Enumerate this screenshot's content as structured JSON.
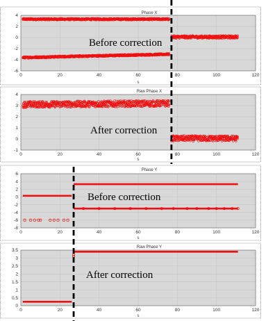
{
  "chart_data": [
    {
      "type": "scatter",
      "title": "Phase X",
      "xlabel": "s",
      "ylabel": "",
      "xlim": [
        0,
        120
      ],
      "ylim": [
        -6,
        4
      ],
      "xticks": [
        "0",
        "20",
        "40",
        "60",
        "80",
        "100",
        "120"
      ],
      "yticks": [
        "4",
        "2",
        "0",
        "-2",
        "-4",
        "-6"
      ],
      "annotation": "Before correction",
      "grid": true,
      "dashed_line_x": 77,
      "series": [
        {
          "segments": [
            {
              "x": [
                1,
                76
              ],
              "y": [
                3.3,
                3.3
              ],
              "spread": 0.15
            },
            {
              "x": [
                1,
                76
              ],
              "y": [
                -3.6,
                -3.0
              ],
              "spread": 0.15
            },
            {
              "x": [
                77,
                111
              ],
              "y": [
                0.1,
                0.1
              ],
              "spread": 0.25
            }
          ]
        }
      ],
      "color": "#ee1111"
    },
    {
      "type": "scatter",
      "title": "Raw Phase X",
      "xlabel": "s",
      "ylabel": "",
      "xlim": [
        0,
        120
      ],
      "ylim": [
        -1,
        4
      ],
      "xticks": [
        "0",
        "20",
        "40",
        "60",
        "80",
        "100",
        "120"
      ],
      "yticks": [
        "4",
        "3",
        "2",
        "1",
        "0",
        "-1"
      ],
      "annotation": "After correction",
      "grid": true,
      "dashed_line_x": 77,
      "series": [
        {
          "segments": [
            {
              "x": [
                1,
                76
              ],
              "y": [
                3.1,
                3.2
              ],
              "spread": 0.28
            },
            {
              "x": [
                77,
                111
              ],
              "y": [
                0.05,
                0.05
              ],
              "spread": 0.25
            }
          ]
        }
      ],
      "color": "#ee1111"
    },
    {
      "type": "scatter",
      "title": "Phase Y",
      "xlabel": "s",
      "ylabel": "",
      "xlim": [
        0,
        120
      ],
      "ylim": [
        -8,
        6
      ],
      "xticks": [
        "0",
        "20",
        "40",
        "60",
        "80",
        "100",
        "120"
      ],
      "yticks": [
        "6",
        "4",
        "2",
        "0",
        "-2",
        "-4",
        "-6",
        "-8"
      ],
      "annotation": "Before correction",
      "grid": true,
      "dashed_line_x": 27,
      "series": [
        {
          "segments": [
            {
              "x": [
                1,
                26
              ],
              "y": [
                0.3,
                0.3
              ],
              "spread": 0
            },
            {
              "x": [
                27,
                111
              ],
              "y": [
                3.3,
                3.3
              ],
              "spread": 0
            },
            {
              "x": [
                27,
                111
              ],
              "y": [
                -3.0,
                -3.0
              ],
              "spread": 0
            }
          ],
          "points": [
            [
              2,
              -6
            ],
            [
              5,
              -6
            ],
            [
              7,
              -6
            ],
            [
              9,
              -6
            ],
            [
              10,
              -6
            ],
            [
              15,
              -6
            ],
            [
              17,
              -6
            ],
            [
              19,
              -6
            ],
            [
              22,
              -6
            ],
            [
              24,
              -6
            ],
            [
              32,
              -3
            ],
            [
              40,
              -3
            ],
            [
              48,
              -3
            ],
            [
              56,
              -3
            ],
            [
              64,
              -3
            ],
            [
              72,
              -3
            ],
            [
              78,
              -3
            ],
            [
              85,
              -3
            ],
            [
              90,
              -3
            ],
            [
              96,
              -3
            ],
            [
              100,
              -3
            ],
            [
              104,
              -3
            ],
            [
              108,
              -3
            ],
            [
              111,
              -3
            ]
          ]
        }
      ],
      "color": "#ee1111"
    },
    {
      "type": "scatter",
      "title": "Raw Phase Y",
      "xlabel": "s",
      "ylabel": "",
      "xlim": [
        0,
        120
      ],
      "ylim": [
        0,
        3.5
      ],
      "xticks": [
        "0",
        "20",
        "40",
        "60",
        "80",
        "100",
        "120"
      ],
      "yticks": [
        "3.5",
        "3",
        "2.5",
        "2",
        "1.5",
        "1",
        "0.5",
        "0"
      ],
      "annotation": "After correction",
      "grid": true,
      "dashed_line_x": 27,
      "series": [
        {
          "segments": [
            {
              "x": [
                1,
                26
              ],
              "y": [
                0.25,
                0.25
              ],
              "spread": 0
            },
            {
              "x": [
                27,
                111
              ],
              "y": [
                3.4,
                3.4
              ],
              "spread": 0
            }
          ],
          "points": [
            [
              27,
              3.1
            ],
            [
              27,
              3.2
            ]
          ]
        }
      ],
      "color": "#ee1111"
    }
  ]
}
